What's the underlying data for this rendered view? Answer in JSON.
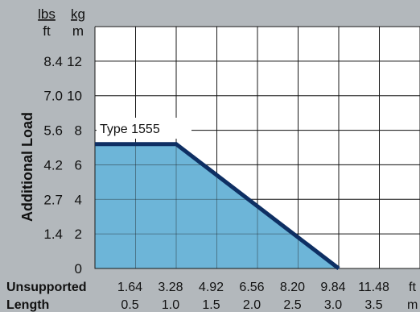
{
  "chart_data": {
    "type": "area",
    "ylabel": "Additional Load",
    "xlabel_line1": "Unsupported",
    "xlabel_line2": "Length",
    "y_unit_lbs": "lbs",
    "y_unit_ft": "ft",
    "y_unit_kg": "kg",
    "y_unit_m": "m",
    "x_unit_ft": "ft",
    "x_unit_m": "m",
    "y_ticks_kgm": [
      "0",
      "2",
      "4",
      "6",
      "8",
      "10",
      "12"
    ],
    "y_ticks_lbsft": [
      "1.4",
      "2.7",
      "4.2",
      "5.6",
      "7.0",
      "8.4"
    ],
    "x_ticks_ft": [
      "1.64",
      "3.28",
      "4.92",
      "6.56",
      "8.20",
      "9.84",
      "11.48"
    ],
    "x_ticks_m": [
      "0.5",
      "1.0",
      "1.5",
      "2.0",
      "2.5",
      "3.0",
      "3.5"
    ],
    "xlim_m": [
      0,
      4.0
    ],
    "ylim_kgm": [
      0,
      14
    ],
    "series": [
      {
        "name": "Type 1555",
        "x_m": [
          0,
          1.0,
          3.0
        ],
        "y_kgm": [
          7.2,
          7.2,
          0
        ]
      }
    ],
    "fill_color": "#6db5d8",
    "line_color": "#0e2f63",
    "background_color": "#b3b8bc",
    "plot_background": "#ffffff",
    "grid": true
  }
}
